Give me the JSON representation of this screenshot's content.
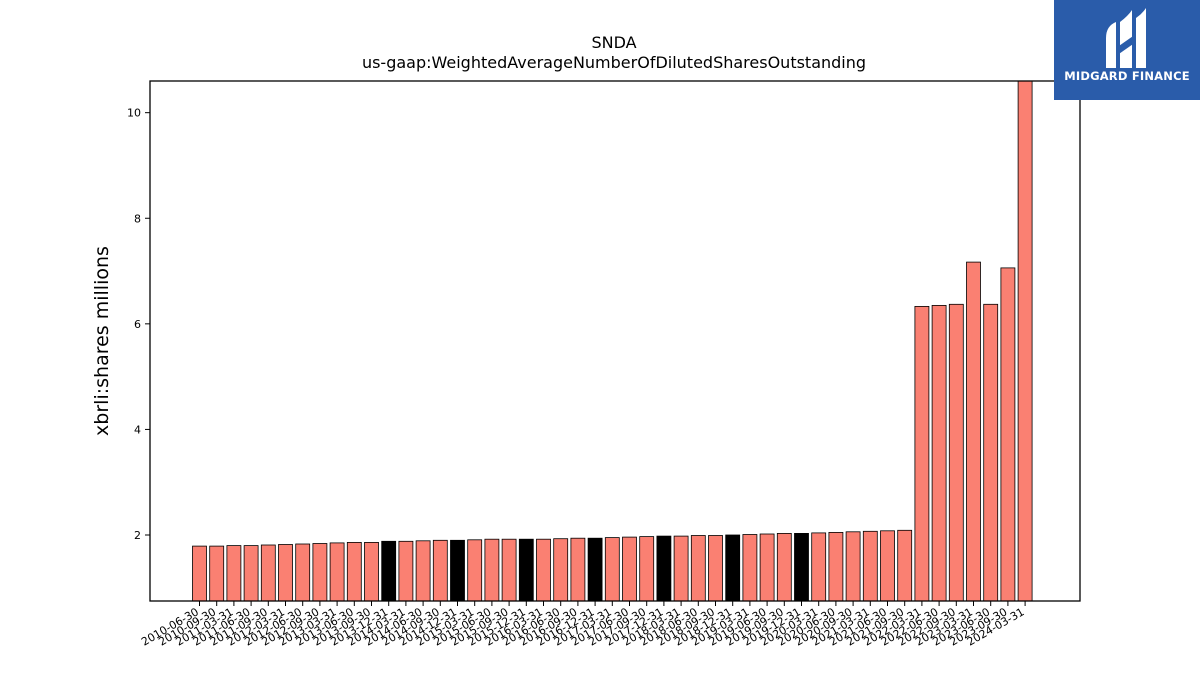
{
  "brand": {
    "name": "MIDGARD FINANCE",
    "bg_color": "#2a5caa",
    "icon": "midgard-logo-icon"
  },
  "chart_data": {
    "type": "bar",
    "title": "SNDA",
    "subtitle": "us-gaap:WeightedAverageNumberOfDilutedSharesOutstanding",
    "xlabel": "",
    "ylabel": "xbrli:shares millions",
    "ylim": [
      0.75,
      10.6
    ],
    "yticks": [
      2,
      4,
      6,
      8,
      10
    ],
    "grid": false,
    "legend": "none",
    "bar_color": "#fa8072",
    "highlight_color": "#000000",
    "categories": [
      "2010-06-30",
      "2010-09-30",
      "2011-03-31",
      "2011-06-30",
      "2011-09-30",
      "2012-03-31",
      "2012-06-30",
      "2012-09-30",
      "2013-03-31",
      "2013-06-30",
      "2013-09-30",
      "2013-12-31",
      "2014-03-31",
      "2014-06-30",
      "2014-09-30",
      "2014-12-31",
      "2015-03-31",
      "2015-06-30",
      "2015-09-30",
      "2015-12-31",
      "2016-03-31",
      "2016-06-30",
      "2016-09-30",
      "2016-12-31",
      "2017-03-31",
      "2017-06-30",
      "2017-09-30",
      "2017-12-31",
      "2018-03-31",
      "2018-06-30",
      "2018-09-30",
      "2018-12-31",
      "2019-03-31",
      "2019-06-30",
      "2019-09-30",
      "2019-12-31",
      "2020-03-31",
      "2020-06-30",
      "2020-09-30",
      "2021-03-31",
      "2021-06-30",
      "2021-09-30",
      "2022-03-31",
      "2022-06-30",
      "2022-09-30",
      "2023-03-31",
      "2023-06-30",
      "2023-09-30",
      "2024-03-31"
    ],
    "values": [
      1.79,
      1.79,
      1.8,
      1.8,
      1.81,
      1.82,
      1.83,
      1.84,
      1.85,
      1.86,
      1.86,
      1.88,
      1.88,
      1.89,
      1.9,
      1.9,
      1.91,
      1.92,
      1.92,
      1.92,
      1.92,
      1.93,
      1.94,
      1.94,
      1.95,
      1.96,
      1.97,
      1.98,
      1.98,
      1.99,
      1.99,
      2.0,
      2.01,
      2.02,
      2.03,
      2.03,
      2.04,
      2.05,
      2.06,
      2.07,
      2.08,
      2.09,
      6.33,
      6.35,
      6.37,
      7.17,
      6.37,
      7.06,
      10.6
    ],
    "highlight": [
      11,
      15,
      19,
      23,
      27,
      31,
      35
    ]
  }
}
